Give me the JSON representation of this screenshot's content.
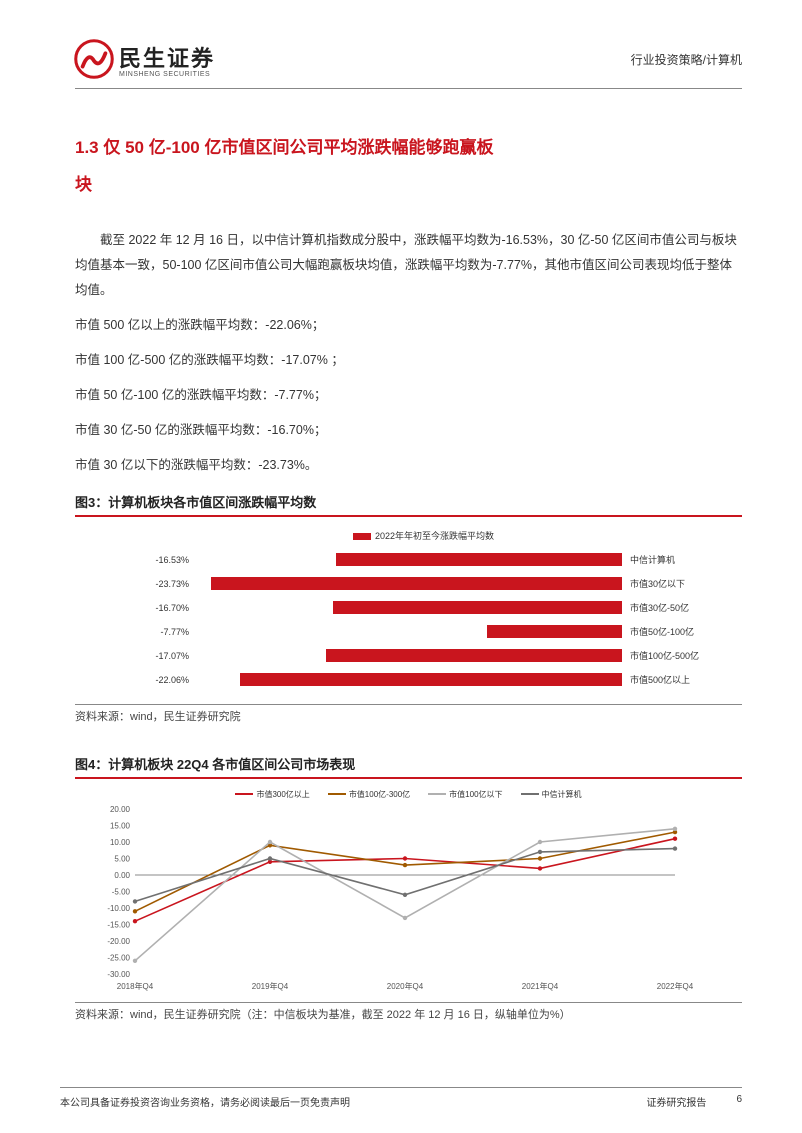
{
  "header": {
    "company_cn": "民生证券",
    "company_en": "MINSHENG SECURITIES",
    "right_text": "行业投资策略/计算机"
  },
  "section": {
    "title_line1": "1.3 仅 50 亿-100 亿市值区间公司平均涨跌幅能够跑赢板",
    "title_line2": "块",
    "para1": "截至 2022 年 12 月 16 日，以中信计算机指数成分股中，涨跌幅平均数为-16.53%，30 亿-50 亿区间市值公司与板块均值基本一致，50-100 亿区间市值公司大幅跑赢板块均值，涨跌幅平均数为-7.77%，其他市值区间公司表现均低于整体均值。",
    "lines": [
      "市值 500 亿以上的涨跌幅平均数：-22.06%；",
      "市值 100 亿-500 亿的涨跌幅平均数：-17.07% ；",
      "市值 50 亿-100 亿的涨跌幅平均数：-7.77%；",
      "市值 30 亿-50 亿的涨跌幅平均数：-16.70%；",
      "市值 30 亿以下的涨跌幅平均数：-23.73%。"
    ]
  },
  "fig3": {
    "title": "图3：计算机板块各市值区间涨跌幅平均数",
    "legend": "2022年年初至今涨跌幅平均数",
    "type": "horizontal_bar",
    "bar_color": "#c9151e",
    "text_color": "#333333",
    "background_color": "#ffffff",
    "label_fontsize": 9,
    "xlim": [
      -25,
      0
    ],
    "bars": [
      {
        "label": "中信计算机",
        "value": -16.53,
        "display": "-16.53%",
        "width_pct": 66.1
      },
      {
        "label": "市值30亿以下",
        "value": -23.73,
        "display": "-23.73%",
        "width_pct": 94.9
      },
      {
        "label": "市值30亿-50亿",
        "value": -16.7,
        "display": "-16.70%",
        "width_pct": 66.8
      },
      {
        "label": "市值50亿-100亿",
        "value": -7.77,
        "display": "-7.77%",
        "width_pct": 31.1
      },
      {
        "label": "市值100亿-500亿",
        "value": -17.07,
        "display": "-17.07%",
        "width_pct": 68.3
      },
      {
        "label": "市值500亿以上",
        "value": -22.06,
        "display": "-22.06%",
        "width_pct": 88.2
      }
    ],
    "source": "资料来源：wind，民生证券研究院"
  },
  "fig4": {
    "title": "图4：计算机板块 22Q4 各市值区间公司市场表现",
    "type": "line",
    "background_color": "#ffffff",
    "grid_color": "#cccccc",
    "axis_color": "#888888",
    "label_fontsize": 8,
    "ylim": [
      -30,
      20
    ],
    "ytick_step": 5,
    "x_categories": [
      "2018年Q4",
      "2019年Q4",
      "2020年Q4",
      "2021年Q4",
      "2022年Q4"
    ],
    "legend": [
      {
        "name": "市值300亿以上",
        "color": "#c9151e"
      },
      {
        "name": "市值100亿-300亿",
        "color": "#a05a00"
      },
      {
        "name": "市值100亿以下",
        "color": "#b0b0b0"
      },
      {
        "name": "中信计算机",
        "color": "#707070"
      }
    ],
    "series": [
      {
        "color": "#c9151e",
        "values": [
          -14,
          4,
          5,
          2,
          11
        ]
      },
      {
        "color": "#a05a00",
        "values": [
          -11,
          9,
          3,
          5,
          13
        ]
      },
      {
        "color": "#b0b0b0",
        "values": [
          -26,
          10,
          -13,
          10,
          14
        ]
      },
      {
        "color": "#707070",
        "values": [
          -8,
          5,
          -6,
          7,
          8
        ]
      }
    ],
    "source": "资料来源：wind，民生证券研究院（注：中信板块为基准，截至 2022 年 12 月 16 日，纵轴单位为%）"
  },
  "footer": {
    "left": "本公司具备证券投资咨询业务资格，请务必阅读最后一页免责声明",
    "right1": "证券研究报告",
    "right2": "6"
  }
}
